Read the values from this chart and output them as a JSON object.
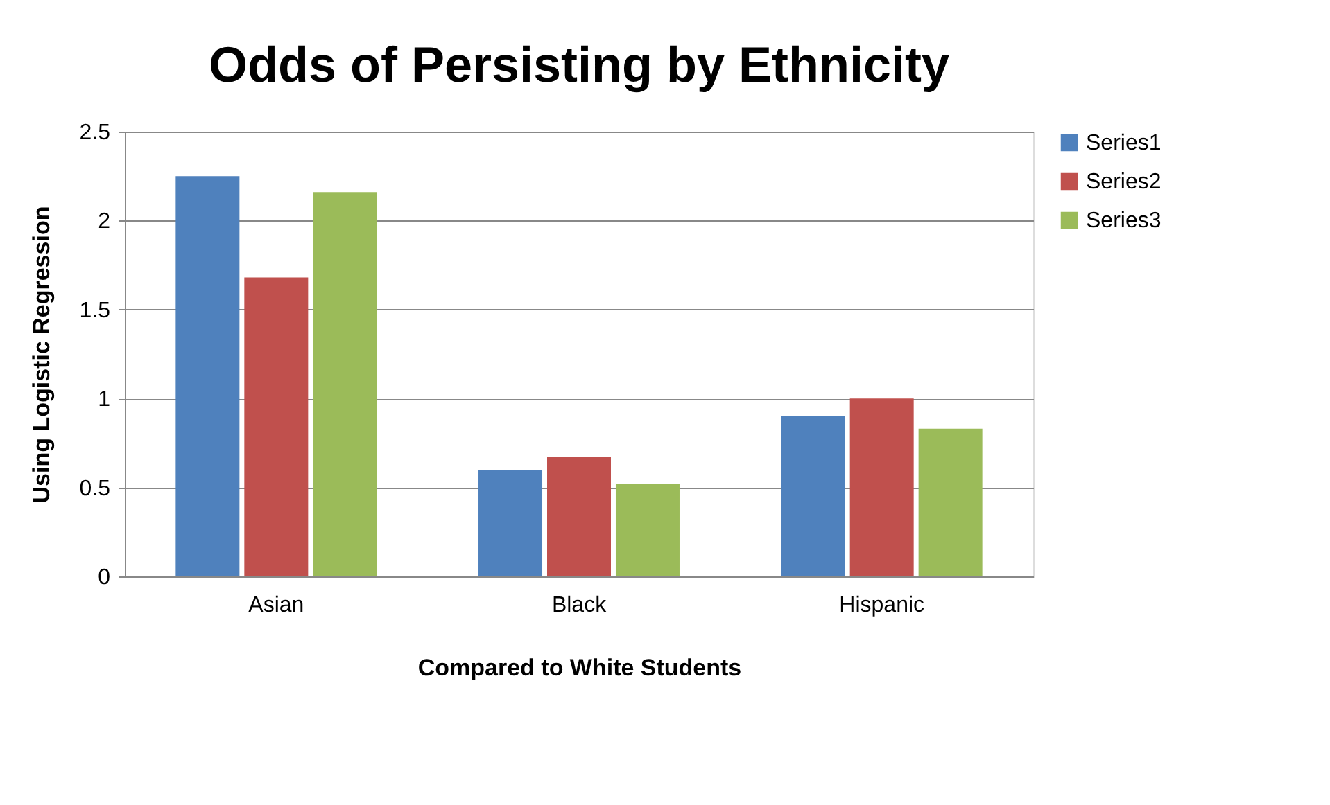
{
  "chart_data": {
    "type": "bar",
    "title": "Odds of Persisting by Ethnicity",
    "xlabel": "Compared to White Students",
    "ylabel": "Using Logistic Regression",
    "categories": [
      "Asian",
      "Black",
      "Hispanic"
    ],
    "series": [
      {
        "name": "Series1",
        "color": "#4f81bd",
        "values": [
          2.25,
          0.6,
          0.9
        ]
      },
      {
        "name": "Series2",
        "color": "#c0504d",
        "values": [
          1.68,
          0.67,
          1.0
        ]
      },
      {
        "name": "Series3",
        "color": "#9bbb59",
        "values": [
          2.16,
          0.52,
          0.83
        ]
      }
    ],
    "ylim": [
      0,
      2.5
    ],
    "yticks": [
      0,
      0.5,
      1,
      1.5,
      2,
      2.5
    ],
    "grid": "y",
    "legend": "right"
  }
}
